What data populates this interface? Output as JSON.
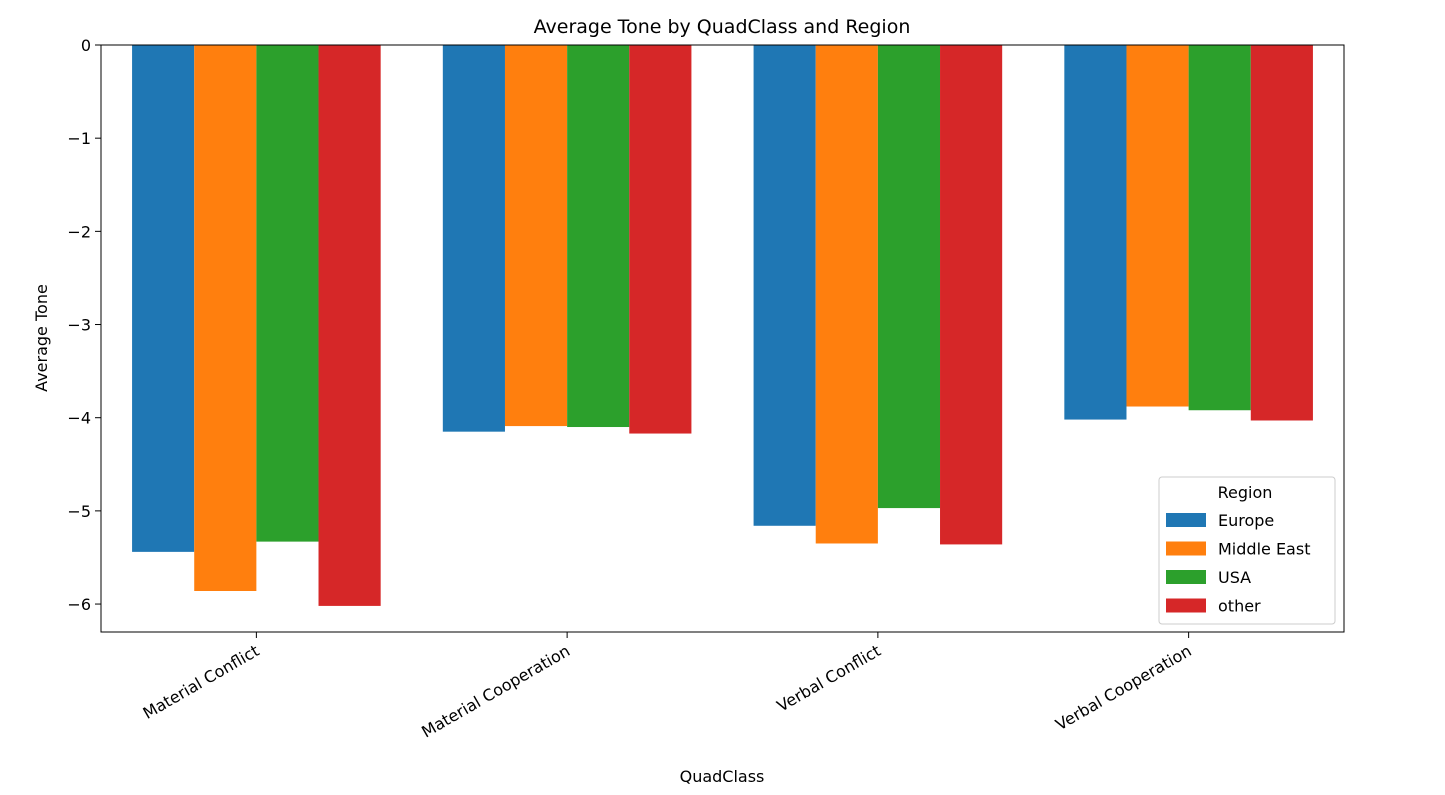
{
  "chart_data": {
    "type": "bar",
    "title": "Average Tone by QuadClass and Region",
    "xlabel": "QuadClass",
    "ylabel": "Average Tone",
    "categories": [
      "Material Conflict",
      "Material Cooperation",
      "Verbal Conflict",
      "Verbal Cooperation"
    ],
    "series": [
      {
        "name": "Europe",
        "color": "#1f77b4",
        "values": [
          -5.44,
          -4.15,
          -5.16,
          -4.02
        ]
      },
      {
        "name": "Middle East",
        "color": "#ff7f0e",
        "values": [
          -5.86,
          -4.09,
          -5.35,
          -3.88
        ]
      },
      {
        "name": "USA",
        "color": "#2ca02c",
        "values": [
          -5.33,
          -4.1,
          -4.97,
          -3.92
        ]
      },
      {
        "name": "other",
        "color": "#d62728",
        "values": [
          -6.02,
          -4.17,
          -5.36,
          -4.03
        ]
      }
    ],
    "ylim": [
      -6.3,
      0
    ],
    "yticks": [
      0,
      -1,
      -2,
      -3,
      -4,
      -5,
      -6
    ],
    "ytick_labels": [
      "0",
      "−1",
      "−2",
      "−3",
      "−4",
      "−5",
      "−6"
    ],
    "grid": false,
    "legend": {
      "title": "Region",
      "position": "lower-right"
    }
  }
}
